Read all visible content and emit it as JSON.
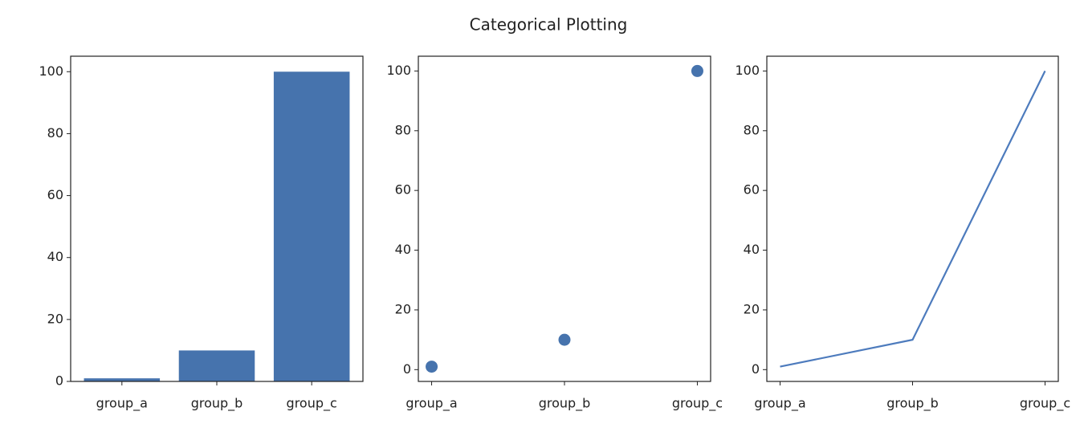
{
  "title": "Categorical Plotting",
  "chart_data": [
    {
      "type": "bar",
      "categories": [
        "group_a",
        "group_b",
        "group_c"
      ],
      "values": [
        1,
        10,
        100
      ],
      "color": "#4673ad",
      "ylim": [
        0,
        105
      ],
      "yticks": [
        0,
        20,
        40,
        60,
        80,
        100
      ]
    },
    {
      "type": "scatter",
      "categories": [
        "group_a",
        "group_b",
        "group_c"
      ],
      "values": [
        1,
        10,
        100
      ],
      "color": "#4673ad",
      "ylim": [
        -3.95,
        104.95
      ],
      "yticks": [
        0,
        20,
        40,
        60,
        80,
        100
      ]
    },
    {
      "type": "line",
      "categories": [
        "group_a",
        "group_b",
        "group_c"
      ],
      "values": [
        1,
        10,
        100
      ],
      "color": "#4d7bbd",
      "ylim": [
        -3.95,
        104.95
      ],
      "yticks": [
        0,
        20,
        40,
        60,
        80,
        100
      ]
    }
  ]
}
